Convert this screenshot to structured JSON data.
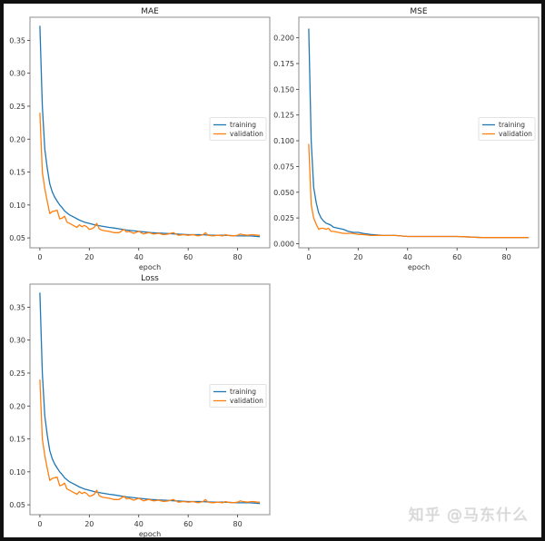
{
  "watermark": "知乎 @马东什么",
  "colors": {
    "training": "#1f77b4",
    "validation": "#ff7f0e",
    "frame": "#8c8c8c",
    "background": "#ffffff",
    "border": "#111111"
  },
  "chart_data": [
    {
      "type": "line",
      "title": "MAE",
      "xlabel": "epoch",
      "ylabel": "",
      "xlim": [
        -4,
        93
      ],
      "ylim": [
        0.035,
        0.385
      ],
      "xticks": [
        0,
        20,
        40,
        60,
        80
      ],
      "yticks": [
        0.05,
        0.1,
        0.15,
        0.2,
        0.25,
        0.3,
        0.35
      ],
      "ytick_labels": [
        "0.05",
        "0.10",
        "0.15",
        "0.20",
        "0.25",
        "0.30",
        "0.35"
      ],
      "legend": {
        "entries": [
          "training",
          "validation"
        ],
        "position": "center right"
      },
      "grid": false,
      "series": [
        {
          "name": "training",
          "x": [
            0,
            1,
            2,
            3,
            4,
            5,
            6,
            7,
            8,
            9,
            10,
            12,
            14,
            16,
            18,
            20,
            22,
            25,
            28,
            30,
            35,
            40,
            45,
            50,
            55,
            60,
            65,
            70,
            75,
            80,
            85,
            89
          ],
          "values": [
            0.372,
            0.25,
            0.185,
            0.155,
            0.132,
            0.12,
            0.112,
            0.106,
            0.1,
            0.096,
            0.091,
            0.085,
            0.081,
            0.077,
            0.074,
            0.072,
            0.07,
            0.068,
            0.066,
            0.065,
            0.062,
            0.06,
            0.058,
            0.057,
            0.056,
            0.055,
            0.055,
            0.054,
            0.054,
            0.053,
            0.053,
            0.052
          ]
        },
        {
          "name": "validation",
          "x": [
            0,
            1,
            2,
            3,
            4,
            5,
            6,
            7,
            8,
            9,
            10,
            11,
            12,
            13,
            14,
            15,
            16,
            17,
            18,
            19,
            20,
            21,
            22,
            23,
            24,
            25,
            26,
            28,
            30,
            32,
            34,
            35,
            36,
            38,
            40,
            42,
            44,
            46,
            48,
            50,
            52,
            54,
            56,
            58,
            60,
            62,
            64,
            66,
            67,
            68,
            70,
            72,
            74,
            75,
            76,
            78,
            80,
            81,
            82,
            84,
            86,
            88,
            89
          ],
          "values": [
            0.24,
            0.15,
            0.125,
            0.105,
            0.087,
            0.09,
            0.091,
            0.092,
            0.079,
            0.08,
            0.083,
            0.074,
            0.072,
            0.07,
            0.068,
            0.066,
            0.07,
            0.067,
            0.069,
            0.067,
            0.063,
            0.064,
            0.066,
            0.072,
            0.064,
            0.062,
            0.061,
            0.06,
            0.058,
            0.058,
            0.063,
            0.059,
            0.06,
            0.057,
            0.06,
            0.056,
            0.058,
            0.056,
            0.057,
            0.055,
            0.056,
            0.058,
            0.054,
            0.055,
            0.054,
            0.055,
            0.053,
            0.055,
            0.058,
            0.054,
            0.053,
            0.054,
            0.053,
            0.055,
            0.054,
            0.053,
            0.054,
            0.056,
            0.055,
            0.054,
            0.055,
            0.054,
            0.054
          ]
        }
      ]
    },
    {
      "type": "line",
      "title": "MSE",
      "xlabel": "epoch",
      "ylabel": "",
      "xlim": [
        -4,
        93
      ],
      "ylim": [
        -0.004,
        0.22
      ],
      "xticks": [
        0,
        20,
        40,
        60,
        80
      ],
      "yticks": [
        0.0,
        0.025,
        0.05,
        0.075,
        0.1,
        0.125,
        0.15,
        0.175,
        0.2
      ],
      "ytick_labels": [
        "0.000",
        "0.025",
        "0.050",
        "0.075",
        "0.100",
        "0.125",
        "0.150",
        "0.175",
        "0.200"
      ],
      "legend": {
        "entries": [
          "training",
          "validation"
        ],
        "position": "center right"
      },
      "grid": false,
      "series": [
        {
          "name": "training",
          "x": [
            0,
            1,
            2,
            3,
            4,
            5,
            6,
            7,
            8,
            9,
            10,
            12,
            14,
            16,
            18,
            20,
            22,
            25,
            30,
            35,
            40,
            45,
            50,
            60,
            70,
            80,
            89
          ],
          "values": [
            0.209,
            0.1,
            0.055,
            0.04,
            0.03,
            0.025,
            0.022,
            0.02,
            0.019,
            0.018,
            0.016,
            0.015,
            0.014,
            0.012,
            0.011,
            0.011,
            0.01,
            0.009,
            0.008,
            0.008,
            0.007,
            0.007,
            0.007,
            0.007,
            0.006,
            0.006,
            0.006
          ]
        },
        {
          "name": "validation",
          "x": [
            0,
            1,
            2,
            3,
            4,
            5,
            6,
            7,
            8,
            9,
            10,
            12,
            14,
            16,
            18,
            20,
            22,
            25,
            30,
            35,
            40,
            45,
            50,
            60,
            70,
            80,
            89
          ],
          "values": [
            0.097,
            0.038,
            0.025,
            0.019,
            0.014,
            0.015,
            0.015,
            0.014,
            0.015,
            0.012,
            0.012,
            0.011,
            0.01,
            0.01,
            0.01,
            0.009,
            0.009,
            0.008,
            0.008,
            0.008,
            0.007,
            0.007,
            0.007,
            0.007,
            0.006,
            0.006,
            0.006
          ]
        }
      ]
    },
    {
      "type": "line",
      "title": "Loss",
      "xlabel": "epoch",
      "ylabel": "",
      "xlim": [
        -4,
        93
      ],
      "ylim": [
        0.035,
        0.385
      ],
      "xticks": [
        0,
        20,
        40,
        60,
        80
      ],
      "yticks": [
        0.05,
        0.1,
        0.15,
        0.2,
        0.25,
        0.3,
        0.35
      ],
      "ytick_labels": [
        "0.05",
        "0.10",
        "0.15",
        "0.20",
        "0.25",
        "0.30",
        "0.35"
      ],
      "legend": {
        "entries": [
          "training",
          "validation"
        ],
        "position": "center right"
      },
      "grid": false,
      "series": [
        {
          "name": "training",
          "x": [
            0,
            1,
            2,
            3,
            4,
            5,
            6,
            7,
            8,
            9,
            10,
            12,
            14,
            16,
            18,
            20,
            22,
            25,
            28,
            30,
            35,
            40,
            45,
            50,
            55,
            60,
            65,
            70,
            75,
            80,
            85,
            89
          ],
          "values": [
            0.372,
            0.25,
            0.185,
            0.155,
            0.132,
            0.12,
            0.112,
            0.106,
            0.1,
            0.096,
            0.091,
            0.085,
            0.081,
            0.077,
            0.074,
            0.072,
            0.07,
            0.068,
            0.066,
            0.065,
            0.062,
            0.06,
            0.058,
            0.057,
            0.056,
            0.055,
            0.055,
            0.054,
            0.054,
            0.053,
            0.053,
            0.052
          ]
        },
        {
          "name": "validation",
          "x": [
            0,
            1,
            2,
            3,
            4,
            5,
            6,
            7,
            8,
            9,
            10,
            11,
            12,
            13,
            14,
            15,
            16,
            17,
            18,
            19,
            20,
            21,
            22,
            23,
            24,
            25,
            26,
            28,
            30,
            32,
            34,
            35,
            36,
            38,
            40,
            42,
            44,
            46,
            48,
            50,
            52,
            54,
            56,
            58,
            60,
            62,
            64,
            66,
            67,
            68,
            70,
            72,
            74,
            75,
            76,
            78,
            80,
            81,
            82,
            84,
            86,
            88,
            89
          ],
          "values": [
            0.24,
            0.15,
            0.125,
            0.105,
            0.087,
            0.09,
            0.091,
            0.092,
            0.079,
            0.08,
            0.083,
            0.074,
            0.072,
            0.07,
            0.068,
            0.066,
            0.07,
            0.067,
            0.069,
            0.067,
            0.063,
            0.064,
            0.066,
            0.072,
            0.064,
            0.062,
            0.061,
            0.06,
            0.058,
            0.058,
            0.063,
            0.059,
            0.06,
            0.057,
            0.06,
            0.056,
            0.058,
            0.056,
            0.057,
            0.055,
            0.056,
            0.058,
            0.054,
            0.055,
            0.054,
            0.055,
            0.053,
            0.055,
            0.058,
            0.054,
            0.053,
            0.054,
            0.053,
            0.055,
            0.054,
            0.053,
            0.054,
            0.056,
            0.055,
            0.054,
            0.055,
            0.054,
            0.054
          ]
        }
      ]
    }
  ]
}
